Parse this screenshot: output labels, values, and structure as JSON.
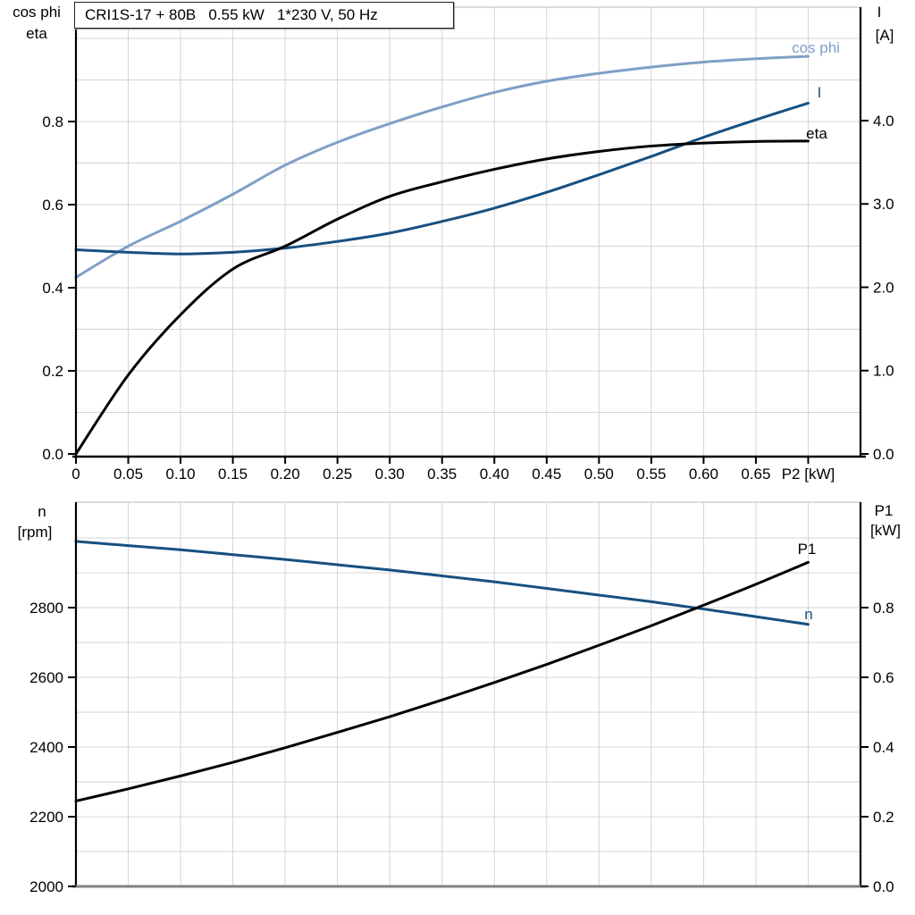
{
  "title": "CRI1S-17 + 80B   0.55 kW   1*230 V, 50 Hz",
  "colors": {
    "light_blue": "#7E9FC7",
    "dark_blue": "#175080",
    "black": "#000000",
    "grid": "#d4d4d4",
    "frame_gray": "#808080",
    "top_border": "#c8c8c8"
  },
  "chart_data": [
    {
      "type": "line",
      "title": "CRI1S-17 + 80B   0.55 kW   1*230 V, 50 Hz",
      "xlabel": "P2 [kW]",
      "xlim": [
        0,
        0.75
      ],
      "x": [
        0,
        0.05,
        0.1,
        0.15,
        0.2,
        0.25,
        0.3,
        0.35,
        0.4,
        0.45,
        0.5,
        0.55,
        0.6,
        0.65,
        0.7
      ],
      "x_tick_values": [
        0,
        0.05,
        0.1,
        0.15,
        0.2,
        0.25,
        0.3,
        0.35,
        0.4,
        0.45,
        0.5,
        0.55,
        0.6,
        0.65,
        0.7
      ],
      "x_tick_labels": [
        "0",
        "0.05",
        "0.10",
        "0.15",
        "0.20",
        "0.25",
        "0.30",
        "0.35",
        "0.40",
        "0.45",
        "0.50",
        "0.55",
        "0.60",
        "0.65",
        "P2 [kW]"
      ],
      "grid": true,
      "left_axis": {
        "label_lines": [
          "cos phi",
          "eta"
        ],
        "range": [
          0,
          1.075
        ],
        "tick_values": [
          0,
          0.2,
          0.4,
          0.6,
          0.8
        ],
        "tick_labels": [
          "0.0",
          "0.2",
          "0.4",
          "0.6",
          "0.8"
        ],
        "minor_grid_step": 0.1
      },
      "right_axis": {
        "label_lines": [
          "I",
          "[A]"
        ],
        "range": [
          0,
          5.375
        ],
        "tick_values": [
          0,
          1,
          2,
          3,
          4
        ],
        "tick_labels": [
          "0.0",
          "1.0",
          "2.0",
          "3.0",
          "4.0"
        ],
        "unit": "A"
      },
      "series": [
        {
          "name": "cos phi",
          "axis": "left",
          "color": "#7E9FC7",
          "values": [
            0.425,
            0.5,
            0.56,
            0.625,
            0.695,
            0.75,
            0.795,
            0.835,
            0.87,
            0.897,
            0.916,
            0.931,
            0.943,
            0.951,
            0.957
          ]
        },
        {
          "name": "I",
          "axis": "right",
          "color": "#175080",
          "values": [
            2.45,
            2.42,
            2.4,
            2.42,
            2.47,
            2.55,
            2.65,
            2.79,
            2.95,
            3.14,
            3.35,
            3.57,
            3.8,
            4.01,
            4.21
          ]
        },
        {
          "name": "eta",
          "axis": "left",
          "color": "#000000",
          "values": [
            0.0,
            0.19,
            0.335,
            0.445,
            0.5,
            0.565,
            0.62,
            0.655,
            0.685,
            0.71,
            0.728,
            0.741,
            0.748,
            0.752,
            0.753
          ]
        }
      ],
      "legend_position": "curve-end-labels"
    },
    {
      "type": "line",
      "title": "",
      "xlabel": "",
      "xlim": [
        0,
        0.75
      ],
      "x": [
        0,
        0.05,
        0.1,
        0.15,
        0.2,
        0.25,
        0.3,
        0.35,
        0.4,
        0.45,
        0.5,
        0.55,
        0.6,
        0.65,
        0.7
      ],
      "x_tick_values": [],
      "x_tick_labels": [],
      "grid": true,
      "left_axis": {
        "label_lines": [
          "n",
          "[rpm]"
        ],
        "range": [
          2000,
          3103
        ],
        "tick_values": [
          2000,
          2200,
          2400,
          2600,
          2800
        ],
        "tick_labels": [
          "2000",
          "2200",
          "2400",
          "2600",
          "2800"
        ],
        "minor_grid_step": 100
      },
      "right_axis": {
        "label_lines": [
          "P1",
          "[kW]"
        ],
        "range": [
          0,
          1.105
        ],
        "tick_values": [
          0,
          0.2,
          0.4,
          0.6,
          0.8
        ],
        "tick_labels": [
          "0.0",
          "0.2",
          "0.4",
          "0.6",
          "0.8"
        ],
        "unit": "kW"
      },
      "series": [
        {
          "name": "n",
          "axis": "left",
          "color": "#175080",
          "values": [
            2990,
            2978,
            2966,
            2952,
            2938,
            2923,
            2908,
            2891,
            2874,
            2855,
            2836,
            2817,
            2796,
            2774,
            2752
          ]
        },
        {
          "name": "P1",
          "axis": "right",
          "color": "#000000",
          "values": [
            0.245,
            0.28,
            0.317,
            0.356,
            0.398,
            0.442,
            0.487,
            0.535,
            0.585,
            0.637,
            0.692,
            0.748,
            0.807,
            0.867,
            0.93
          ]
        }
      ],
      "legend_position": "curve-end-labels"
    }
  ]
}
